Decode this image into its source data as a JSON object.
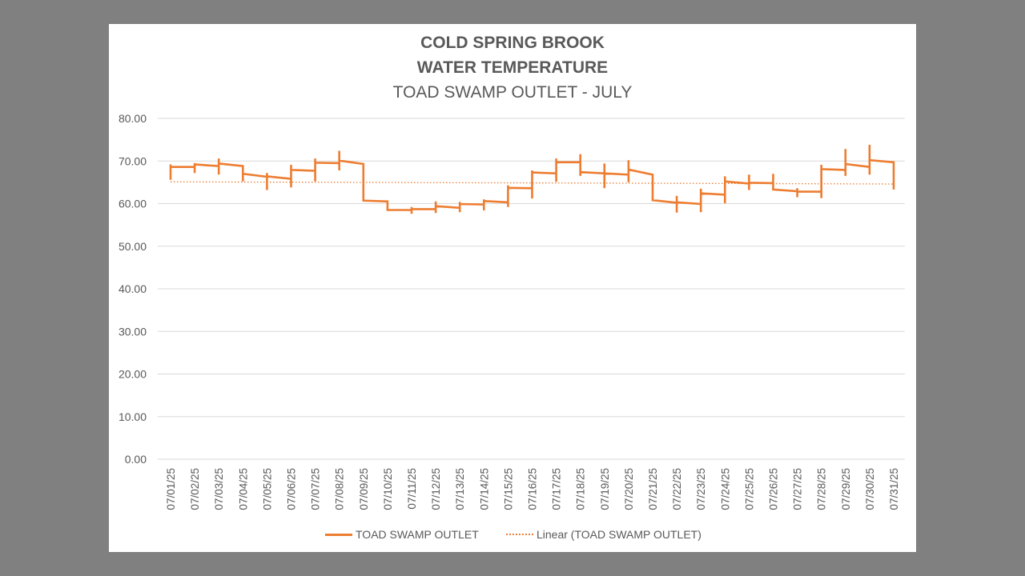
{
  "colors": {
    "series": "#ED7D31",
    "grid": "#d9d9d9",
    "text": "#595959",
    "background": "#808080"
  },
  "chart_data": {
    "type": "line",
    "title": "COLD SPRING BROOK",
    "subtitle_line1": "WATER TEMPERATURE",
    "subtitle_line2": "TOAD SWAMP OUTLET - JULY",
    "xlabel": "",
    "ylabel": "",
    "ylim": [
      0,
      80
    ],
    "y_ticks": [
      "0.00",
      "10.00",
      "20.00",
      "30.00",
      "40.00",
      "50.00",
      "60.00",
      "70.00",
      "80.00"
    ],
    "grid": true,
    "legend_position": "bottom",
    "categories": [
      "07/01/25",
      "07/02/25",
      "07/03/25",
      "07/04/25",
      "07/05/25",
      "07/06/25",
      "07/07/25",
      "07/08/25",
      "07/09/25",
      "07/10/25",
      "07/11/25",
      "07/12/25",
      "07/13/25",
      "07/14/25",
      "07/15/25",
      "07/16/25",
      "07/17/25",
      "07/18/25",
      "07/19/25",
      "07/20/25",
      "07/21/25",
      "07/22/25",
      "07/23/25",
      "07/24/25",
      "07/25/25",
      "07/26/25",
      "07/27/25",
      "07/28/25",
      "07/29/25",
      "07/30/25",
      "07/31/25"
    ],
    "series": [
      {
        "name": "TOAD SWAMP OUTLET",
        "style": "solid",
        "points": [
          {
            "x": 0.0,
            "y": 65.6
          },
          {
            "x": 0.0,
            "y": 69.2
          },
          {
            "x": 0.0,
            "y": 68.6
          },
          {
            "x": 1.0,
            "y": 68.6
          },
          {
            "x": 1.0,
            "y": 67.2
          },
          {
            "x": 1.0,
            "y": 69.5
          },
          {
            "x": 1.0,
            "y": 69.2
          },
          {
            "x": 2.0,
            "y": 68.8
          },
          {
            "x": 2.0,
            "y": 66.8
          },
          {
            "x": 2.0,
            "y": 70.6
          },
          {
            "x": 2.0,
            "y": 69.4
          },
          {
            "x": 3.0,
            "y": 68.8
          },
          {
            "x": 3.0,
            "y": 65.2
          },
          {
            "x": 3.0,
            "y": 67.0
          },
          {
            "x": 4.0,
            "y": 66.3
          },
          {
            "x": 4.0,
            "y": 63.2
          },
          {
            "x": 4.0,
            "y": 67.2
          },
          {
            "x": 4.0,
            "y": 66.4
          },
          {
            "x": 5.0,
            "y": 65.8
          },
          {
            "x": 5.0,
            "y": 63.8
          },
          {
            "x": 5.0,
            "y": 69.1
          },
          {
            "x": 5.0,
            "y": 67.9
          },
          {
            "x": 6.0,
            "y": 67.7
          },
          {
            "x": 6.0,
            "y": 65.2
          },
          {
            "x": 6.0,
            "y": 70.6
          },
          {
            "x": 6.0,
            "y": 69.6
          },
          {
            "x": 7.0,
            "y": 69.5
          },
          {
            "x": 7.0,
            "y": 67.8
          },
          {
            "x": 7.0,
            "y": 72.4
          },
          {
            "x": 7.0,
            "y": 70.1
          },
          {
            "x": 8.0,
            "y": 69.3
          },
          {
            "x": 8.0,
            "y": 60.7
          },
          {
            "x": 9.0,
            "y": 60.5
          },
          {
            "x": 9.0,
            "y": 58.5
          },
          {
            "x": 10.0,
            "y": 58.5
          },
          {
            "x": 10.0,
            "y": 57.6
          },
          {
            "x": 10.0,
            "y": 59.2
          },
          {
            "x": 10.0,
            "y": 58.7
          },
          {
            "x": 11.0,
            "y": 58.7
          },
          {
            "x": 11.0,
            "y": 57.8
          },
          {
            "x": 11.0,
            "y": 60.5
          },
          {
            "x": 11.0,
            "y": 59.4
          },
          {
            "x": 12.0,
            "y": 59.0
          },
          {
            "x": 12.0,
            "y": 58.0
          },
          {
            "x": 12.0,
            "y": 60.4
          },
          {
            "x": 12.0,
            "y": 59.9
          },
          {
            "x": 13.0,
            "y": 59.8
          },
          {
            "x": 13.0,
            "y": 58.4
          },
          {
            "x": 13.0,
            "y": 61.0
          },
          {
            "x": 13.0,
            "y": 60.6
          },
          {
            "x": 14.0,
            "y": 60.3
          },
          {
            "x": 14.0,
            "y": 59.2
          },
          {
            "x": 14.0,
            "y": 64.3
          },
          {
            "x": 14.0,
            "y": 63.7
          },
          {
            "x": 15.0,
            "y": 63.6
          },
          {
            "x": 15.0,
            "y": 61.2
          },
          {
            "x": 15.0,
            "y": 67.8
          },
          {
            "x": 15.0,
            "y": 67.3
          },
          {
            "x": 16.0,
            "y": 67.1
          },
          {
            "x": 16.0,
            "y": 65.1
          },
          {
            "x": 16.0,
            "y": 70.6
          },
          {
            "x": 16.0,
            "y": 69.7
          },
          {
            "x": 17.0,
            "y": 69.7
          },
          {
            "x": 17.0,
            "y": 66.5
          },
          {
            "x": 17.0,
            "y": 71.6
          },
          {
            "x": 17.0,
            "y": 67.4
          },
          {
            "x": 18.0,
            "y": 67.1
          },
          {
            "x": 18.0,
            "y": 63.6
          },
          {
            "x": 18.0,
            "y": 69.4
          },
          {
            "x": 18.0,
            "y": 67.1
          },
          {
            "x": 19.0,
            "y": 66.8
          },
          {
            "x": 19.0,
            "y": 65.0
          },
          {
            "x": 19.0,
            "y": 70.2
          },
          {
            "x": 19.0,
            "y": 68.0
          },
          {
            "x": 20.0,
            "y": 66.8
          },
          {
            "x": 20.0,
            "y": 60.8
          },
          {
            "x": 21.0,
            "y": 60.2
          },
          {
            "x": 21.0,
            "y": 57.9
          },
          {
            "x": 21.0,
            "y": 61.8
          },
          {
            "x": 21.0,
            "y": 60.3
          },
          {
            "x": 22.0,
            "y": 59.9
          },
          {
            "x": 22.0,
            "y": 58.0
          },
          {
            "x": 22.0,
            "y": 63.5
          },
          {
            "x": 22.0,
            "y": 62.4
          },
          {
            "x": 23.0,
            "y": 62.1
          },
          {
            "x": 23.0,
            "y": 60.1
          },
          {
            "x": 23.0,
            "y": 66.4
          },
          {
            "x": 23.0,
            "y": 65.2
          },
          {
            "x": 24.0,
            "y": 64.7
          },
          {
            "x": 24.0,
            "y": 63.2
          },
          {
            "x": 24.0,
            "y": 66.8
          },
          {
            "x": 24.0,
            "y": 64.9
          },
          {
            "x": 25.0,
            "y": 64.8
          },
          {
            "x": 25.0,
            "y": 63.2
          },
          {
            "x": 25.0,
            "y": 67.0
          },
          {
            "x": 25.0,
            "y": 63.3
          },
          {
            "x": 26.0,
            "y": 62.9
          },
          {
            "x": 26.0,
            "y": 61.5
          },
          {
            "x": 26.0,
            "y": 63.6
          },
          {
            "x": 26.0,
            "y": 62.8
          },
          {
            "x": 27.0,
            "y": 62.8
          },
          {
            "x": 27.0,
            "y": 61.3
          },
          {
            "x": 27.0,
            "y": 69.1
          },
          {
            "x": 27.0,
            "y": 68.1
          },
          {
            "x": 28.0,
            "y": 67.9
          },
          {
            "x": 28.0,
            "y": 66.5
          },
          {
            "x": 28.0,
            "y": 72.8
          },
          {
            "x": 28.0,
            "y": 69.3
          },
          {
            "x": 29.0,
            "y": 68.6
          },
          {
            "x": 29.0,
            "y": 66.8
          },
          {
            "x": 29.0,
            "y": 73.8
          },
          {
            "x": 29.0,
            "y": 70.2
          },
          {
            "x": 30.0,
            "y": 69.7
          },
          {
            "x": 30.0,
            "y": 63.3
          }
        ]
      },
      {
        "name": "Linear (TOAD SWAMP OUTLET)",
        "style": "dotted",
        "points": [
          {
            "x": 0.0,
            "y": 65.1
          },
          {
            "x": 30.0,
            "y": 64.6
          }
        ]
      }
    ]
  },
  "legend": {
    "series_label": "TOAD SWAMP OUTLET",
    "trend_label": "Linear (TOAD SWAMP OUTLET)"
  }
}
